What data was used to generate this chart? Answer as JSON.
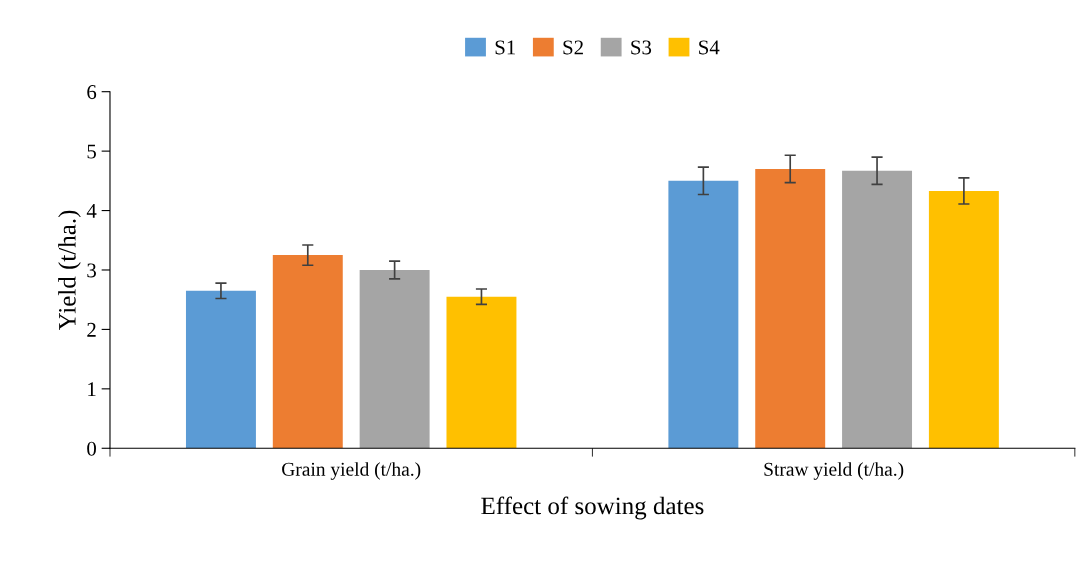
{
  "chart_data": {
    "type": "bar",
    "xlabel": "Effect of sowing dates",
    "ylabel": "Yield (t/ha.)",
    "categories": [
      "Grain yield (t/ha.)",
      "Straw yield (t/ha.)"
    ],
    "series": [
      {
        "name": "S1",
        "color": "#5b9bd5",
        "values": [
          2.65,
          4.5
        ],
        "errors": [
          0.13,
          0.23
        ]
      },
      {
        "name": "S2",
        "color": "#ed7d31",
        "values": [
          3.25,
          4.7
        ],
        "errors": [
          0.17,
          0.23
        ]
      },
      {
        "name": "S3",
        "color": "#a5a5a5",
        "values": [
          3.0,
          4.67
        ],
        "errors": [
          0.15,
          0.23
        ]
      },
      {
        "name": "S4",
        "color": "#ffc000",
        "values": [
          2.55,
          4.33
        ],
        "errors": [
          0.13,
          0.22
        ]
      }
    ],
    "ylim": [
      0,
      6
    ],
    "yticks": [
      0,
      1,
      2,
      3,
      4,
      5,
      6
    ],
    "grid": false,
    "legend": "top"
  }
}
